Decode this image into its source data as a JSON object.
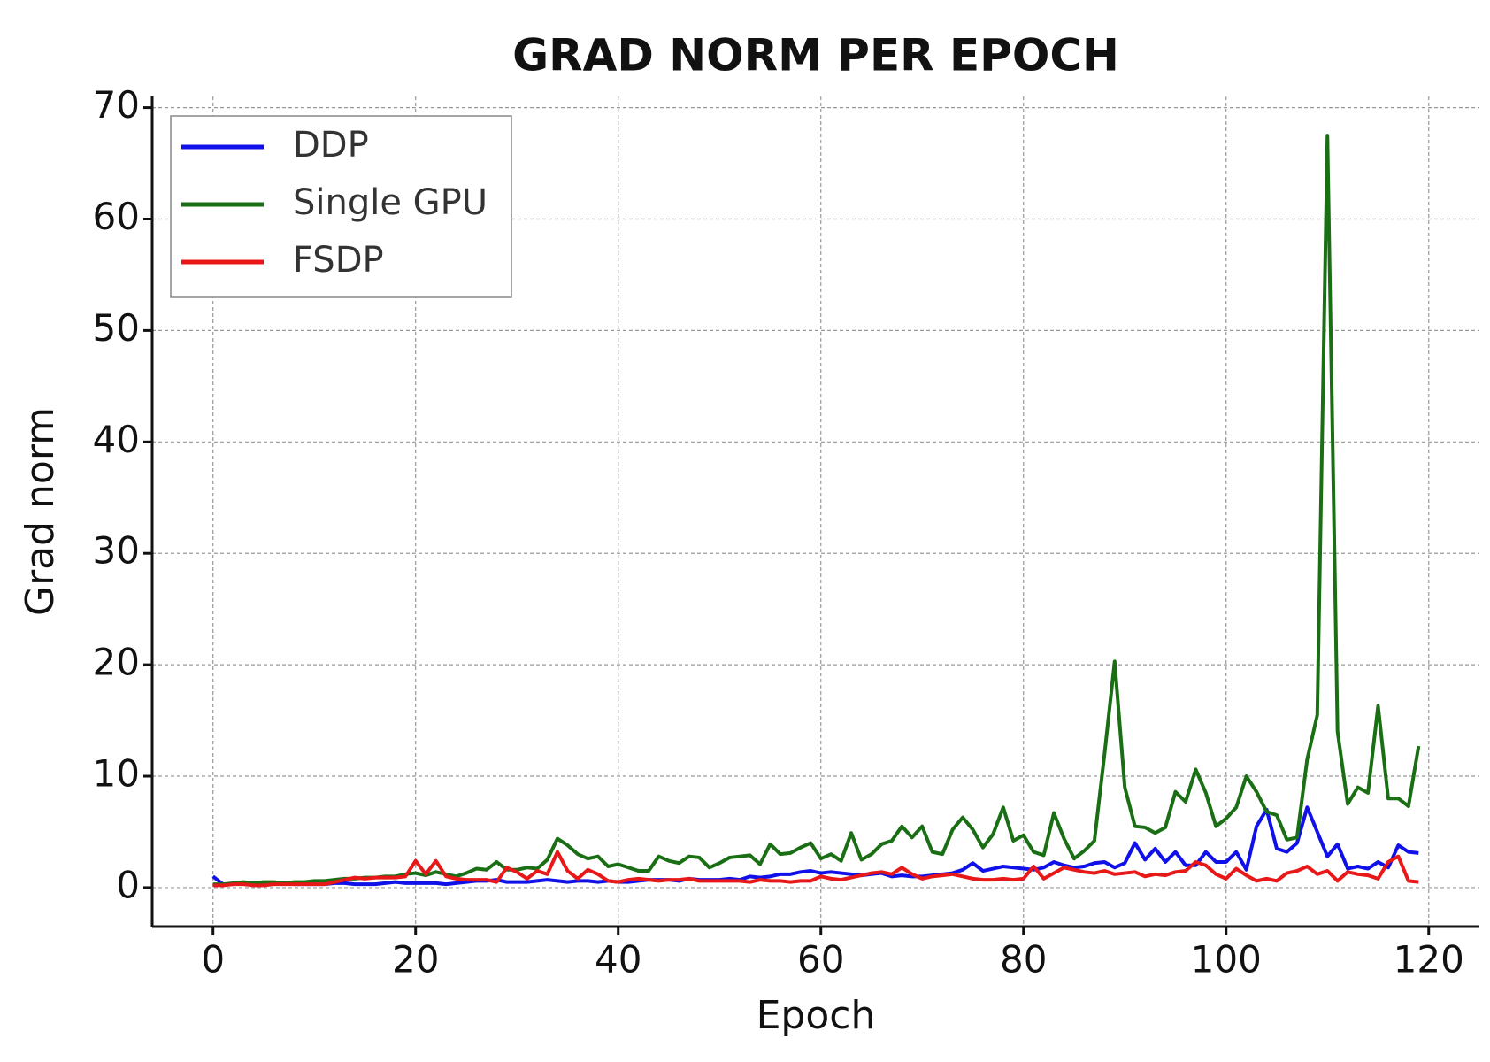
{
  "chart_data": {
    "type": "line",
    "title": "GRAD NORM PER EPOCH",
    "x_label": "Epoch",
    "y_label": "Grad norm",
    "x": [
      0,
      1,
      2,
      3,
      4,
      5,
      6,
      7,
      8,
      9,
      10,
      11,
      12,
      13,
      14,
      15,
      16,
      17,
      18,
      19,
      20,
      21,
      22,
      23,
      24,
      25,
      26,
      27,
      28,
      29,
      30,
      31,
      32,
      33,
      34,
      35,
      36,
      37,
      38,
      39,
      40,
      41,
      42,
      43,
      44,
      45,
      46,
      47,
      48,
      49,
      50,
      51,
      52,
      53,
      54,
      55,
      56,
      57,
      58,
      59,
      60,
      61,
      62,
      63,
      64,
      65,
      66,
      67,
      68,
      69,
      70,
      71,
      72,
      73,
      74,
      75,
      76,
      77,
      78,
      79,
      80,
      81,
      82,
      83,
      84,
      85,
      86,
      87,
      88,
      89,
      90,
      91,
      92,
      93,
      94,
      95,
      96,
      97,
      98,
      99,
      100,
      101,
      102,
      103,
      104,
      105,
      106,
      107,
      108,
      109,
      110,
      111,
      112,
      113,
      114,
      115,
      116,
      117,
      118,
      119
    ],
    "series": [
      {
        "name": "DDP",
        "color": "#1010e8",
        "values": [
          1.0,
          0.3,
          0.3,
          0.4,
          0.4,
          0.3,
          0.4,
          0.4,
          0.3,
          0.3,
          0.3,
          0.3,
          0.4,
          0.4,
          0.3,
          0.3,
          0.3,
          0.4,
          0.5,
          0.4,
          0.4,
          0.4,
          0.4,
          0.3,
          0.4,
          0.5,
          0.6,
          0.6,
          0.7,
          0.5,
          0.5,
          0.5,
          0.6,
          0.7,
          0.6,
          0.5,
          0.6,
          0.6,
          0.5,
          0.6,
          0.5,
          0.5,
          0.6,
          0.7,
          0.7,
          0.7,
          0.6,
          0.8,
          0.7,
          0.7,
          0.7,
          0.8,
          0.7,
          1.0,
          0.9,
          1.0,
          1.2,
          1.2,
          1.4,
          1.5,
          1.3,
          1.4,
          1.3,
          1.2,
          1.1,
          1.2,
          1.3,
          1.0,
          1.1,
          1.0,
          1.0,
          1.1,
          1.2,
          1.3,
          1.6,
          2.2,
          1.5,
          1.7,
          1.9,
          1.8,
          1.7,
          1.6,
          1.8,
          2.3,
          2.0,
          1.8,
          1.9,
          2.2,
          2.3,
          1.8,
          2.2,
          4.0,
          2.5,
          3.5,
          2.3,
          3.2,
          2.0,
          2.0,
          3.2,
          2.3,
          2.3,
          3.2,
          1.6,
          5.5,
          7.0,
          3.5,
          3.2,
          4.0,
          7.2,
          5.0,
          2.8,
          3.9,
          1.7,
          1.9,
          1.7,
          2.3,
          1.8,
          3.8,
          3.2,
          3.1
        ]
      },
      {
        "name": "Single GPU",
        "color": "#1a6e14",
        "values": [
          0.3,
          0.3,
          0.4,
          0.5,
          0.4,
          0.5,
          0.5,
          0.4,
          0.5,
          0.5,
          0.6,
          0.6,
          0.7,
          0.8,
          0.8,
          0.9,
          0.9,
          1.0,
          1.0,
          1.2,
          1.3,
          1.1,
          1.4,
          1.2,
          1.0,
          1.3,
          1.7,
          1.6,
          2.3,
          1.6,
          1.6,
          1.8,
          1.7,
          2.5,
          4.4,
          3.8,
          3.0,
          2.6,
          2.8,
          1.9,
          2.1,
          1.8,
          1.5,
          1.5,
          2.8,
          2.4,
          2.2,
          2.8,
          2.7,
          1.8,
          2.2,
          2.7,
          2.8,
          2.9,
          2.1,
          3.9,
          3.0,
          3.1,
          3.6,
          4.0,
          2.6,
          3.0,
          2.4,
          4.9,
          2.5,
          3.0,
          3.9,
          4.2,
          5.5,
          4.5,
          5.5,
          3.2,
          3.0,
          5.2,
          6.3,
          5.2,
          3.6,
          4.8,
          7.2,
          4.2,
          4.7,
          3.2,
          2.9,
          6.7,
          4.4,
          2.6,
          3.3,
          4.2,
          12.0,
          20.3,
          9.0,
          5.5,
          5.4,
          4.9,
          5.4,
          8.6,
          7.7,
          10.6,
          8.5,
          5.5,
          6.2,
          7.2,
          10.0,
          8.6,
          6.8,
          6.5,
          4.3,
          4.5,
          11.5,
          15.5,
          67.5,
          14.0,
          7.5,
          9.0,
          8.5,
          16.3,
          8.0,
          8.0,
          7.3,
          12.7
        ]
      },
      {
        "name": "FSDP",
        "color": "#e81818",
        "values": [
          0.2,
          0.2,
          0.3,
          0.3,
          0.2,
          0.2,
          0.3,
          0.3,
          0.3,
          0.3,
          0.3,
          0.3,
          0.5,
          0.7,
          0.9,
          0.8,
          0.9,
          0.9,
          0.9,
          1.0,
          2.4,
          1.2,
          2.4,
          1.0,
          0.8,
          0.7,
          0.7,
          0.7,
          0.5,
          1.8,
          1.4,
          0.8,
          1.5,
          1.2,
          3.2,
          1.5,
          0.8,
          1.6,
          1.2,
          0.6,
          0.5,
          0.7,
          0.8,
          0.7,
          0.6,
          0.7,
          0.7,
          0.8,
          0.6,
          0.6,
          0.6,
          0.6,
          0.6,
          0.5,
          0.7,
          0.6,
          0.6,
          0.5,
          0.6,
          0.6,
          1.0,
          0.8,
          0.7,
          0.9,
          1.1,
          1.3,
          1.4,
          1.2,
          1.8,
          1.2,
          0.8,
          1.0,
          1.1,
          1.2,
          1.0,
          0.8,
          0.7,
          0.7,
          0.8,
          0.7,
          0.8,
          1.9,
          0.8,
          1.3,
          1.8,
          1.6,
          1.4,
          1.3,
          1.5,
          1.2,
          1.3,
          1.4,
          1.0,
          1.2,
          1.1,
          1.4,
          1.5,
          2.3,
          2.0,
          1.2,
          0.8,
          1.7,
          1.1,
          0.6,
          0.8,
          0.6,
          1.3,
          1.5,
          1.9,
          1.2,
          1.5,
          0.6,
          1.4,
          1.2,
          1.1,
          0.8,
          2.3,
          2.8,
          0.6,
          0.5
        ]
      }
    ],
    "xlim": [
      -6,
      125
    ],
    "ylim": [
      -3.5,
      71
    ],
    "xticks": [
      0,
      20,
      40,
      60,
      80,
      100,
      120
    ],
    "yticks": [
      0,
      10,
      20,
      30,
      40,
      50,
      60,
      70
    ],
    "grid": true,
    "legend": "upper left"
  }
}
